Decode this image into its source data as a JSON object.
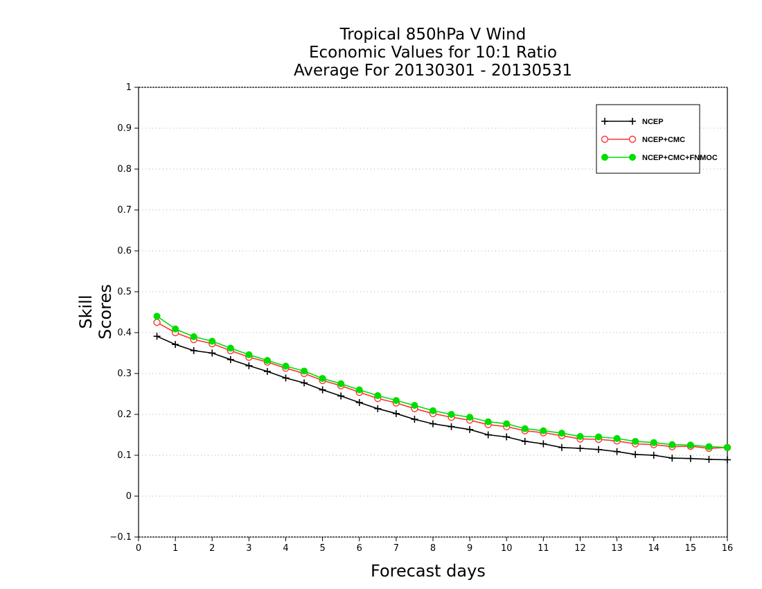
{
  "chart_data": {
    "type": "line",
    "title": [
      "Tropical 850hPa V Wind",
      "Economic Values for 10:1 Ratio",
      "Average For 20130301 - 20130531"
    ],
    "xlabel": "Forecast days",
    "ylabel": "Skill Scores",
    "xlim": [
      0,
      16
    ],
    "ylim": [
      -0.1,
      1
    ],
    "xticks": [
      "0",
      "1",
      "2",
      "3",
      "4",
      "5",
      "6",
      "7",
      "8",
      "9",
      "10",
      "11",
      "12",
      "13",
      "14",
      "15",
      "16"
    ],
    "yticks": [
      "−0.1",
      "0",
      "0.1",
      "0.2",
      "0.3",
      "0.4",
      "0.5",
      "0.6",
      "0.7",
      "0.8",
      "0.9",
      "1"
    ],
    "grid": "horizontal dotted",
    "legend_position": "top-right",
    "x": [
      0.5,
      1,
      1.5,
      2,
      2.5,
      3,
      3.5,
      4,
      4.5,
      5,
      5.5,
      6,
      6.5,
      7,
      7.5,
      8,
      8.5,
      9,
      9.5,
      10,
      10.5,
      11,
      11.5,
      12,
      12.5,
      13,
      13.5,
      14,
      14.5,
      15,
      15.5,
      16
    ],
    "series": [
      {
        "name": "NCEP",
        "color": "#000000",
        "marker": "plus",
        "values": [
          0.391,
          0.371,
          0.356,
          0.35,
          0.334,
          0.319,
          0.305,
          0.289,
          0.277,
          0.26,
          0.245,
          0.229,
          0.214,
          0.202,
          0.188,
          0.177,
          0.17,
          0.163,
          0.15,
          0.145,
          0.134,
          0.128,
          0.119,
          0.117,
          0.114,
          0.109,
          0.102,
          0.1,
          0.093,
          0.092,
          0.09,
          0.089
        ]
      },
      {
        "name": "NCEP+CMC",
        "color": "#ff3333",
        "marker": "open-circle",
        "values": [
          0.425,
          0.4,
          0.383,
          0.373,
          0.356,
          0.34,
          0.328,
          0.313,
          0.3,
          0.283,
          0.27,
          0.254,
          0.239,
          0.228,
          0.214,
          0.202,
          0.193,
          0.186,
          0.175,
          0.17,
          0.16,
          0.155,
          0.148,
          0.14,
          0.139,
          0.135,
          0.128,
          0.126,
          0.121,
          0.122,
          0.117,
          0.119
        ]
      },
      {
        "name": "NCEP+CMC+FNMOC",
        "color": "#00dd00",
        "marker": "filled-circle",
        "values": [
          0.44,
          0.409,
          0.39,
          0.379,
          0.362,
          0.346,
          0.332,
          0.318,
          0.306,
          0.288,
          0.275,
          0.26,
          0.246,
          0.234,
          0.222,
          0.209,
          0.2,
          0.193,
          0.182,
          0.177,
          0.165,
          0.16,
          0.154,
          0.146,
          0.145,
          0.141,
          0.134,
          0.131,
          0.126,
          0.125,
          0.121,
          0.119
        ]
      }
    ]
  }
}
